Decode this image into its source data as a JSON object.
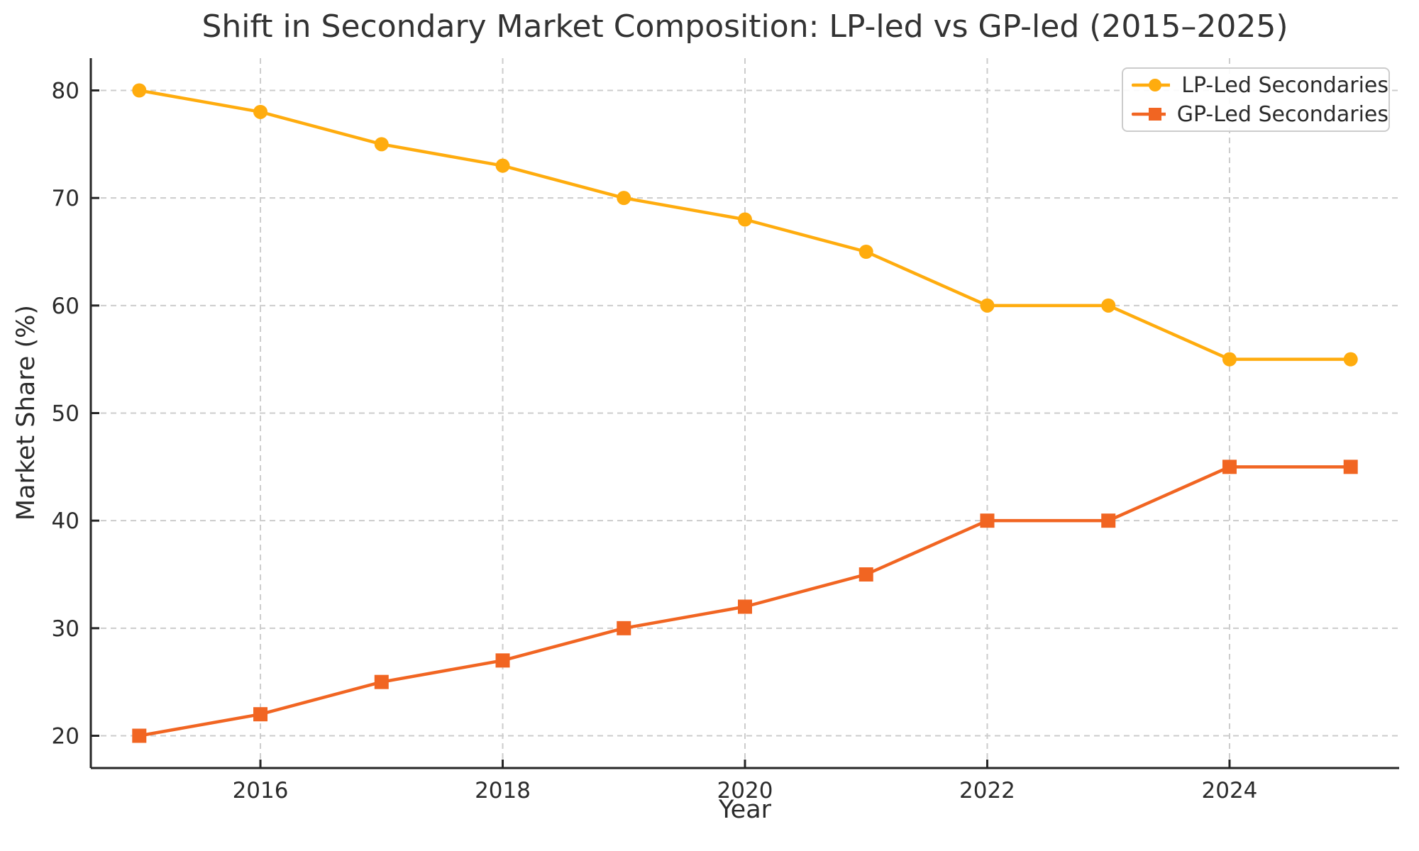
{
  "figure": {
    "background": "#ffffff"
  },
  "chart_data": {
    "type": "line",
    "title": "Shift in Secondary Market Composition: LP-led vs GP-led (2015–2025)",
    "xlabel": "Year",
    "ylabel": "Market Share (%)",
    "x": [
      2015,
      2016,
      2017,
      2018,
      2019,
      2020,
      2021,
      2022,
      2023,
      2024,
      2025
    ],
    "series": [
      {
        "name": "LP-Led Secondaries",
        "marker": "circle",
        "color": "#FFAC0E",
        "values": [
          80,
          78,
          75,
          73,
          70,
          68,
          65,
          60,
          60,
          55,
          55
        ]
      },
      {
        "name": "GP-Led Secondaries",
        "marker": "square",
        "color": "#F16522",
        "values": [
          20,
          22,
          25,
          27,
          30,
          32,
          35,
          40,
          40,
          45,
          45
        ]
      }
    ],
    "x_tick_values": [
      2016,
      2018,
      2020,
      2022,
      2024
    ],
    "x_tick_labels": [
      "2016",
      "2018",
      "2020",
      "2022",
      "2024"
    ],
    "y_tick_values": [
      20,
      30,
      40,
      50,
      60,
      70,
      80
    ],
    "y_tick_labels": [
      "20",
      "30",
      "40",
      "50",
      "60",
      "70",
      "80"
    ],
    "xlim": [
      2014.6,
      2025.4
    ],
    "ylim": [
      17,
      83
    ],
    "grid": true,
    "grid_style": "dashed",
    "legend_position": "upper right",
    "colors": {
      "grid": "#cccccc",
      "spine": "#262626",
      "tick_text": "#2b2b2b",
      "title_text": "#333333"
    }
  }
}
